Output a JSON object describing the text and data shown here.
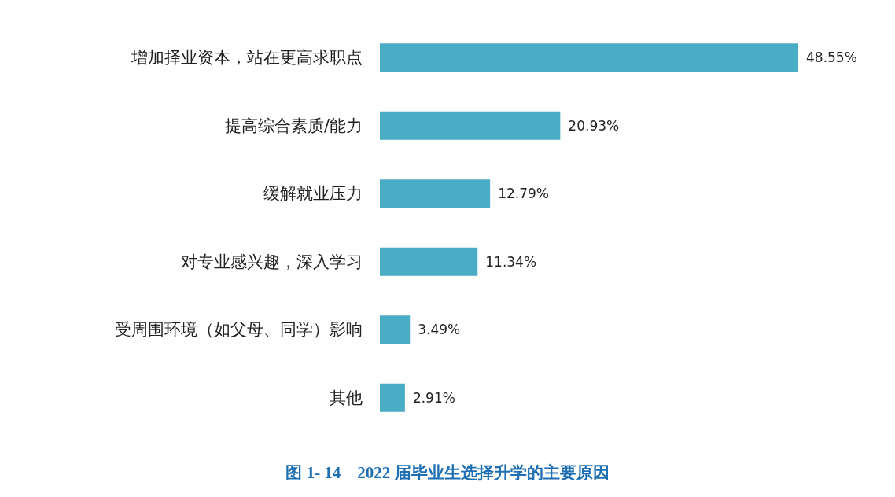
{
  "chart_data": {
    "type": "bar",
    "orientation": "horizontal",
    "title": "图 1- 14　2022 届毕业生选择升学的主要原因",
    "categories": [
      "增加择业资本，站在更高求职点",
      "提高综合素质/能力",
      "缓解就业压力",
      "对专业感兴趣，深入学习",
      "受周围环境（如父母、同学）影响",
      "其他"
    ],
    "values": [
      48.55,
      20.93,
      12.79,
      11.34,
      3.49,
      2.91
    ],
    "value_labels": [
      "48.55%",
      "20.93%",
      "12.79%",
      "11.34%",
      "3.49%",
      "2.91%"
    ],
    "color": "#4bacc6"
  }
}
